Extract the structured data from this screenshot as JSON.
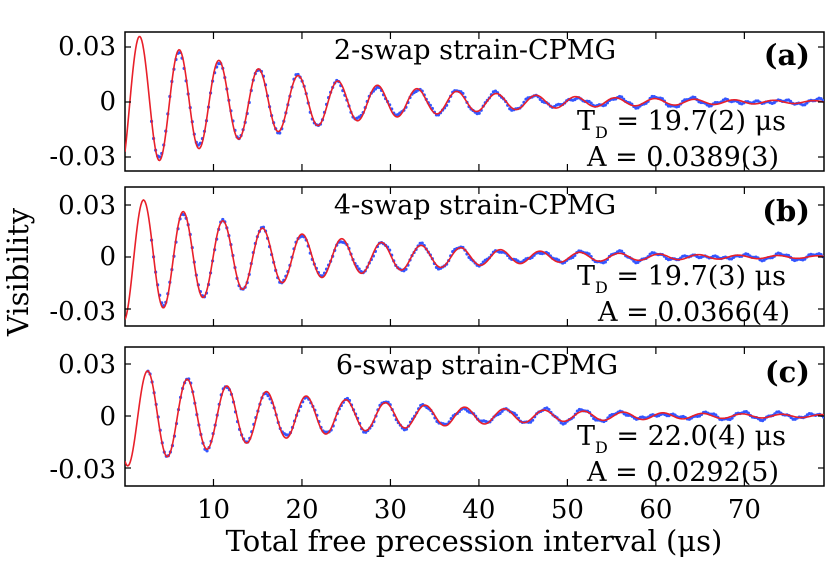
{
  "chart_data": {
    "type": "line",
    "xlabel": "Total free precession interval (μs)",
    "ylabel": "Visibility",
    "xlim": [
      0,
      79
    ],
    "x_ticks": [
      "10",
      "20",
      "30",
      "40",
      "50",
      "60",
      "70"
    ],
    "ylim": [
      -0.042,
      0.042
    ],
    "y_ticks": [
      "0.03",
      "0",
      "-0.03"
    ],
    "panels": [
      {
        "label": "(a)",
        "title": "2-swap strain-CPMG",
        "fit": {
          "T_D_us": 19.7,
          "A": 0.0389,
          "period_us": 4.48,
          "phase_x_us": 0.55,
          "annotation": [
            "T_D = 19.7(2) μs",
            "A = 0.0389(3)"
          ]
        },
        "ann_line1": "T",
        "ann_sub": "D",
        "ann_line1_rest": " = 19.7(2) μs",
        "ann_line2": "A = 0.0389(3)",
        "series": [
          {
            "name": "data",
            "color": "#3355ff",
            "marker": "dots",
            "x_start": 3.0,
            "x_end": 79.0,
            "x_step": 0.23
          },
          {
            "name": "fit",
            "color": "#e8202a",
            "marker": "line",
            "x_start": 0.0,
            "x_end": 79.0
          }
        ]
      },
      {
        "label": "(b)",
        "title": "4-swap strain-CPMG",
        "fit": {
          "T_D_us": 19.7,
          "A": 0.0366,
          "period_us": 4.48,
          "phase_x_us": 1.0,
          "annotation": [
            "T_D = 19.7(3) μs",
            "A = 0.0366(4)"
          ]
        },
        "ann_line1": "T",
        "ann_sub": "D",
        "ann_line1_rest": " = 19.7(3) μs",
        "ann_line2": "A = 0.0366(4)",
        "series": [
          {
            "name": "data",
            "color": "#3355ff",
            "marker": "dots",
            "x_start": 3.0,
            "x_end": 79.0,
            "x_step": 0.23
          },
          {
            "name": "fit",
            "color": "#e8202a",
            "marker": "line",
            "x_start": 0.0,
            "x_end": 79.0
          }
        ]
      },
      {
        "label": "(c)",
        "title": "6-swap strain-CPMG",
        "fit": {
          "T_D_us": 22.0,
          "A": 0.0292,
          "period_us": 4.48,
          "phase_x_us": 1.45,
          "annotation": [
            "T_D = 22.0(4) μs",
            "A = 0.0292(5)"
          ]
        },
        "ann_line1": "T",
        "ann_sub": "D",
        "ann_line1_rest": " = 22.0(4) μs",
        "ann_line2": "A = 0.0292(5)",
        "series": [
          {
            "name": "data",
            "color": "#3355ff",
            "marker": "dots",
            "x_start": 2.6,
            "x_end": 79.0,
            "x_step": 0.23
          },
          {
            "name": "fit",
            "color": "#e8202a",
            "marker": "line",
            "x_start": 0.0,
            "x_end": 79.0
          }
        ]
      }
    ]
  }
}
